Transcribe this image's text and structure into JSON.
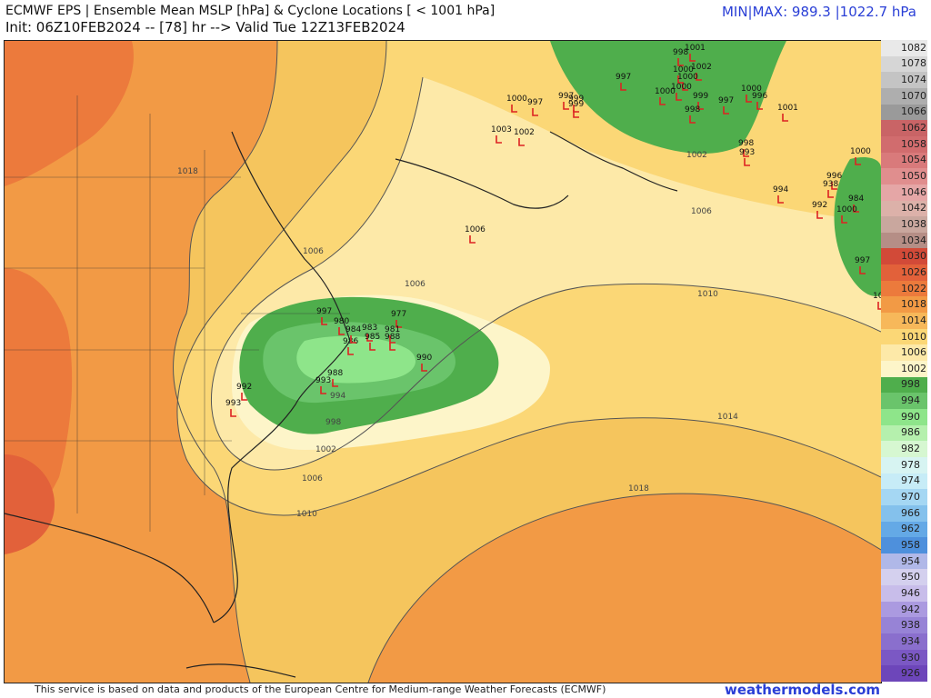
{
  "header": {
    "title": "ECMWF EPS | Ensemble Mean MSLP [hPa] & Cyclone Locations [ < 1001 hPa]",
    "init": "Init: 06Z10FEB2024 -- [78] hr --> Valid Tue 12Z13FEB2024",
    "minmax": "MIN|MAX: 989.3 |1022.7 hPa"
  },
  "footer": {
    "disclaimer": "This service is based on data and products of the European Centre for Medium-range Weather Forecasts (ECMWF)",
    "brand": "weathermodels.com"
  },
  "colorbar": {
    "labels": [
      "1082",
      "1078",
      "1074",
      "1070",
      "1066",
      "1062",
      "1058",
      "1054",
      "1050",
      "1046",
      "1042",
      "1038",
      "1034",
      "1030",
      "1026",
      "1022",
      "1018",
      "1014",
      "1010",
      "1006",
      "1002",
      "998",
      "994",
      "990",
      "986",
      "982",
      "978",
      "974",
      "970",
      "966",
      "962",
      "958",
      "954",
      "950",
      "946",
      "942",
      "938",
      "934",
      "930",
      "926"
    ],
    "colors": [
      "#e9e9e9",
      "#d6d6d6",
      "#c4c4c4",
      "#aeaeae",
      "#9a9a9a",
      "#c96466",
      "#d16c6e",
      "#d97a7b",
      "#e08e8e",
      "#e5a6a6",
      "#dcb1a9",
      "#c9a79e",
      "#b58e86",
      "#d24a38",
      "#e2613a",
      "#ec7a3c",
      "#f29a45",
      "#f7b85a",
      "#fbd776",
      "#fde9a8",
      "#fdf5c9",
      "#4fae4c",
      "#6ac46b",
      "#8ee58a",
      "#b5f0ad",
      "#d6f7d1",
      "#d7f4f2",
      "#c7ecf7",
      "#a5d7f3",
      "#84c1ec",
      "#64a9e6",
      "#4e90dc",
      "#b0b8e8",
      "#d4d0ee",
      "#c8bdea",
      "#ab9ae0",
      "#9783d6",
      "#8a6fcd",
      "#7b58c4",
      "#6d46ba"
    ]
  },
  "map": {
    "contour_labels": [
      "1018",
      "1006",
      "1010",
      "1006",
      "1002",
      "998",
      "994",
      "1006",
      "1010",
      "1014",
      "1018",
      "1002",
      "1006"
    ],
    "cyclones": [
      {
        "label": "1001"
      },
      {
        "label": "998"
      },
      {
        "label": "1002"
      },
      {
        "label": "997"
      },
      {
        "label": "999"
      },
      {
        "label": "997"
      },
      {
        "label": "1000"
      },
      {
        "label": "1000"
      },
      {
        "label": "1000"
      },
      {
        "label": "999"
      },
      {
        "label": "998"
      },
      {
        "label": "1000"
      },
      {
        "label": "996"
      },
      {
        "label": "1001"
      },
      {
        "label": "997"
      },
      {
        "label": "1000"
      },
      {
        "label": "998"
      },
      {
        "label": "993"
      },
      {
        "label": "1000"
      },
      {
        "label": "994"
      },
      {
        "label": "992"
      },
      {
        "label": "996"
      },
      {
        "label": "938"
      },
      {
        "label": "984"
      },
      {
        "label": "1000"
      },
      {
        "label": "997"
      },
      {
        "label": "1002"
      },
      {
        "label": "1003"
      },
      {
        "label": "1006"
      },
      {
        "label": "1002"
      },
      {
        "label": "990"
      },
      {
        "label": "977"
      },
      {
        "label": "981"
      },
      {
        "label": "988"
      },
      {
        "label": "983"
      },
      {
        "label": "985"
      },
      {
        "label": "986"
      },
      {
        "label": "992"
      },
      {
        "label": "993"
      },
      {
        "label": "988"
      },
      {
        "label": "993"
      },
      {
        "label": "997"
      },
      {
        "label": "980"
      },
      {
        "label": "984"
      },
      {
        "label": "1000"
      },
      {
        "label": "997"
      },
      {
        "label": "999"
      }
    ]
  }
}
